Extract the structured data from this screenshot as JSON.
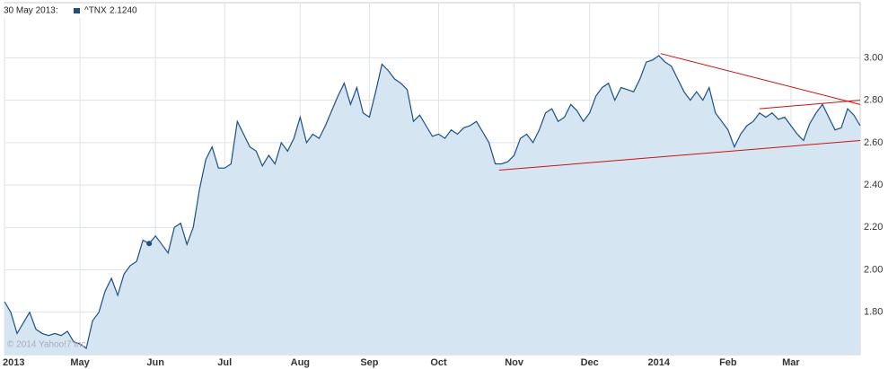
{
  "chart_data": {
    "type": "area",
    "header_date": "30 May 2013:",
    "watermark": "© 2014 Yahoo!7 Inc.",
    "categories": [
      "2013",
      null,
      null,
      null,
      null,
      null,
      null,
      null,
      null,
      null,
      null,
      null,
      "May",
      null,
      null,
      null,
      null,
      null,
      null,
      null,
      null,
      null,
      null,
      null,
      "Jun",
      null,
      null,
      null,
      null,
      null,
      null,
      null,
      null,
      null,
      null,
      "Jul",
      null,
      null,
      null,
      null,
      null,
      null,
      null,
      null,
      null,
      null,
      null,
      "Aug",
      null,
      null,
      null,
      null,
      null,
      null,
      null,
      null,
      null,
      null,
      "Sep",
      null,
      null,
      null,
      null,
      null,
      null,
      null,
      null,
      null,
      null,
      "Oct",
      null,
      null,
      null,
      null,
      null,
      null,
      null,
      null,
      null,
      null,
      null,
      "Nov",
      null,
      null,
      null,
      null,
      null,
      null,
      null,
      null,
      null,
      null,
      null,
      "Dec",
      null,
      null,
      null,
      null,
      null,
      null,
      null,
      null,
      null,
      null,
      "2014",
      null,
      null,
      null,
      null,
      null,
      null,
      null,
      null,
      null,
      null,
      "Feb",
      null,
      null,
      null,
      null,
      null,
      null,
      null,
      null,
      null,
      "Mar",
      null,
      null,
      null,
      null,
      null,
      null,
      null,
      null,
      null,
      null,
      null
    ],
    "series": [
      {
        "name": "^TNX",
        "color": "#1d4f86",
        "fill": "#d5e5f2",
        "highlight": {
          "index": 23,
          "label": "2.1240"
        },
        "values": [
          1.85,
          1.8,
          1.7,
          1.75,
          1.8,
          1.72,
          1.7,
          1.69,
          1.7,
          1.69,
          1.71,
          1.66,
          1.65,
          1.63,
          1.76,
          1.8,
          1.9,
          1.96,
          1.88,
          1.98,
          2.02,
          2.04,
          2.14,
          2.124,
          2.16,
          2.12,
          2.08,
          2.2,
          2.22,
          2.12,
          2.2,
          2.38,
          2.52,
          2.58,
          2.48,
          2.48,
          2.5,
          2.7,
          2.64,
          2.58,
          2.56,
          2.49,
          2.54,
          2.5,
          2.6,
          2.56,
          2.62,
          2.72,
          2.6,
          2.64,
          2.62,
          2.68,
          2.75,
          2.82,
          2.88,
          2.78,
          2.86,
          2.74,
          2.72,
          2.84,
          2.97,
          2.94,
          2.9,
          2.88,
          2.85,
          2.7,
          2.73,
          2.68,
          2.63,
          2.64,
          2.62,
          2.66,
          2.64,
          2.67,
          2.68,
          2.7,
          2.65,
          2.6,
          2.5,
          2.5,
          2.51,
          2.54,
          2.62,
          2.64,
          2.6,
          2.66,
          2.74,
          2.76,
          2.7,
          2.72,
          2.78,
          2.75,
          2.7,
          2.74,
          2.82,
          2.86,
          2.88,
          2.8,
          2.86,
          2.85,
          2.84,
          2.9,
          2.98,
          2.99,
          3.01,
          2.98,
          2.96,
          2.9,
          2.84,
          2.8,
          2.84,
          2.8,
          2.86,
          2.74,
          2.7,
          2.66,
          2.58,
          2.64,
          2.68,
          2.7,
          2.74,
          2.72,
          2.74,
          2.71,
          2.72,
          2.68,
          2.64,
          2.61,
          2.69,
          2.74,
          2.78,
          2.72,
          2.66,
          2.67,
          2.76,
          2.73,
          2.68
        ]
      }
    ],
    "trendlines": [
      {
        "color": "#cc1111",
        "x": [
          78.6,
          136
        ],
        "values": [
          2.47,
          2.61
        ]
      },
      {
        "color": "#cc1111",
        "x": [
          104.3,
          136
        ],
        "values": [
          3.02,
          2.78
        ]
      },
      {
        "color": "#cc1111",
        "x": [
          120,
          136
        ],
        "values": [
          2.76,
          2.8
        ]
      }
    ],
    "ylim": [
      1.6,
      3.26
    ],
    "yticks": [
      {
        "value": 1.8,
        "label": "1.80"
      },
      {
        "value": 2.0,
        "label": "2.00"
      },
      {
        "value": 2.2,
        "label": "2.20"
      },
      {
        "value": 2.4,
        "label": "2.40"
      },
      {
        "value": 2.6,
        "label": "2.60"
      },
      {
        "value": 2.8,
        "label": "2.80"
      },
      {
        "value": 3.0,
        "label": "3.00"
      }
    ],
    "grid": true
  }
}
